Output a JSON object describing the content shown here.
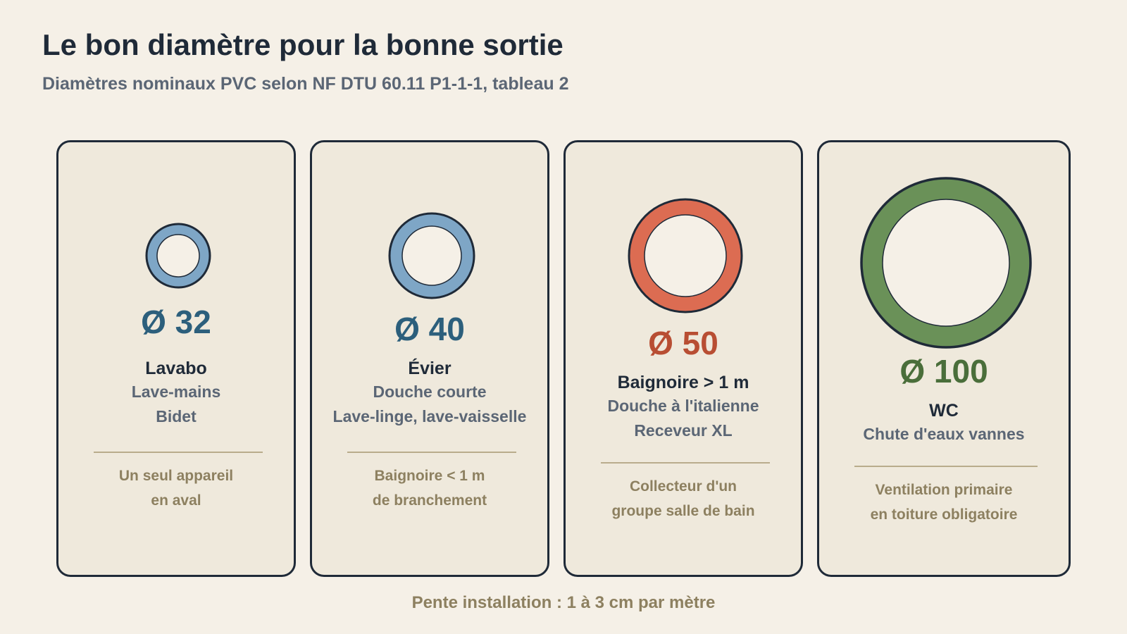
{
  "header": {
    "title": "Le bon diamètre pour la bonne sortie",
    "subtitle": "Diamètres nominaux PVC selon NF DTU 60.11 P1-1-1, tableau 2"
  },
  "cards": [
    {
      "diameter": "Ø 32",
      "primary": "Lavabo",
      "secondary": [
        "Lave-mains",
        "Bidet"
      ],
      "note": [
        "Un seul appareil",
        "en aval"
      ],
      "colors": {
        "ring": "#7ea6c6",
        "text": "#2c5f7c"
      }
    },
    {
      "diameter": "Ø 40",
      "primary": "Évier",
      "secondary": [
        "Douche courte",
        "Lave-linge, lave-vaisselle"
      ],
      "note": [
        "Baignoire < 1 m",
        "de branchement"
      ],
      "colors": {
        "ring": "#7ea6c6",
        "text": "#2c5f7c"
      }
    },
    {
      "diameter": "Ø 50",
      "primary": "Baignoire > 1 m",
      "secondary": [
        "Douche à l'italienne",
        "Receveur XL"
      ],
      "note": [
        "Collecteur d'un",
        "groupe salle de bain"
      ],
      "colors": {
        "ring": "#dc6c52",
        "text": "#b84e33"
      }
    },
    {
      "diameter": "Ø 100",
      "primary": "WC",
      "secondary": [
        "Chute d'eaux vannes"
      ],
      "note": [
        "Ventilation primaire",
        "en toiture obligatoire"
      ],
      "colors": {
        "ring": "#6a9158",
        "text": "#4a6e3a"
      }
    }
  ],
  "footer": {
    "text": "Pente installation : 1 à 3 cm par mètre"
  },
  "colors": {
    "background": "#f5f0e7",
    "card": "#efe9dc",
    "outline": "#1f2a38",
    "note": "#8d8060"
  }
}
